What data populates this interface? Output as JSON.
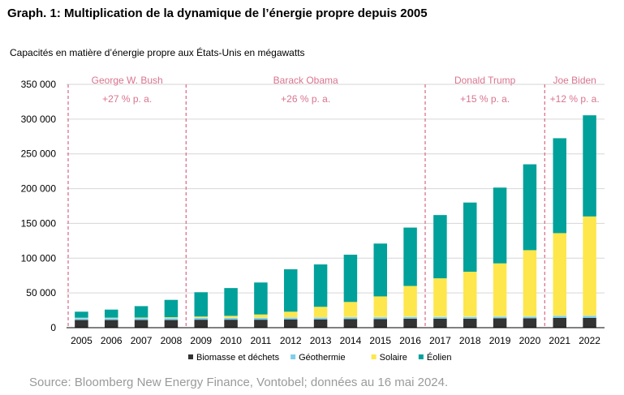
{
  "chart_data": {
    "type": "bar",
    "stacked": true,
    "title": "Graph. 1: Multiplication de la dynamique de l’énergie propre depuis 2005",
    "subtitle": "Capacités en matière d’énergie propre aux États-Unis en mégawatts",
    "categories": [
      "2005",
      "2006",
      "2007",
      "2008",
      "2009",
      "2010",
      "2011",
      "2012",
      "2013",
      "2014",
      "2015",
      "2016",
      "2017",
      "2018",
      "2019",
      "2020",
      "2021",
      "2022"
    ],
    "series": [
      {
        "name": "Biomasse et déchets",
        "color": "#333333",
        "values": [
          11000,
          11000,
          11000,
          11000,
          11500,
          11500,
          11500,
          12000,
          12000,
          12500,
          12500,
          13000,
          13000,
          13000,
          13500,
          13500,
          14000,
          14000
        ]
      },
      {
        "name": "Géothermie",
        "color": "#7ed0e8",
        "values": [
          2500,
          2500,
          2500,
          2500,
          2500,
          2500,
          2500,
          2500,
          2500,
          2500,
          2500,
          2500,
          2500,
          2500,
          2500,
          2500,
          3000,
          3000
        ]
      },
      {
        "name": "",
        "color": "#e8e8e8",
        "values": [
          500,
          500,
          500,
          500,
          500,
          500,
          500,
          500,
          500,
          500,
          500,
          500,
          500,
          500,
          500,
          500,
          500,
          500
        ]
      },
      {
        "name": "Solaire",
        "color": "#fde74c",
        "values": [
          300,
          400,
          600,
          1000,
          1500,
          2500,
          4500,
          8000,
          15000,
          21500,
          29500,
          44000,
          55000,
          64500,
          76000,
          95000,
          118500,
          142500
        ]
      },
      {
        "name": "Éolien",
        "color": "#00a19a",
        "values": [
          8700,
          11600,
          16400,
          25000,
          35000,
          40000,
          46000,
          61000,
          61000,
          68000,
          76000,
          84000,
          91000,
          99500,
          109000,
          123500,
          136500,
          145500
        ]
      }
    ],
    "yticks": [
      "0",
      "50 000",
      "100 000",
      "150 000",
      "200 000",
      "250 000",
      "300 000",
      "350 000"
    ],
    "ylim": [
      0,
      350000
    ],
    "grid": true,
    "legend_position": "bottom",
    "annotation_color": "#d9748f",
    "periods": [
      {
        "label": "George W. Bush",
        "growth": "+27 % p. a.",
        "start": "2005",
        "end": "2008"
      },
      {
        "label": "Barack Obama",
        "growth": "+26 % p. a.",
        "start": "2009",
        "end": "2016"
      },
      {
        "label": "Donald Trump",
        "growth": "+15 % p. a.",
        "start": "2017",
        "end": "2020"
      },
      {
        "label": "Joe Biden",
        "growth": "+12 % p. a.",
        "start": "2021",
        "end": "2022"
      }
    ]
  },
  "source": "Source: Bloomberg New Energy Finance, Vontobel; données au 16 mai 2024."
}
